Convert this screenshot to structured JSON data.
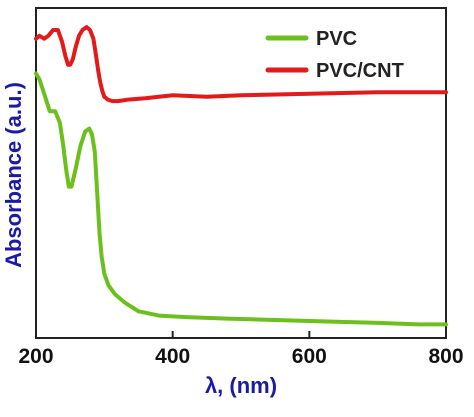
{
  "chart_data": {
    "type": "line",
    "title": "",
    "xlabel": "λ, (nm)",
    "ylabel": "Absorbance (a.u.)",
    "xlim": [
      200,
      800
    ],
    "ylim": [
      0,
      1
    ],
    "xticks": [
      200,
      400,
      600,
      800
    ],
    "grid": false,
    "legend_position": "top-right",
    "label_color": "#1a1aa8",
    "series": [
      {
        "name": "PVC",
        "color": "#6cc01e",
        "x": [
          200,
          205,
          212,
          220,
          228,
          235,
          240,
          244,
          248,
          252,
          258,
          265,
          272,
          278,
          282,
          286,
          290,
          293,
          296,
          300,
          306,
          315,
          330,
          350,
          380,
          420,
          480,
          550,
          620,
          700,
          760,
          800
        ],
        "y": [
          0.85,
          0.83,
          0.78,
          0.72,
          0.72,
          0.68,
          0.6,
          0.52,
          0.46,
          0.46,
          0.52,
          0.6,
          0.65,
          0.66,
          0.64,
          0.58,
          0.42,
          0.3,
          0.22,
          0.16,
          0.12,
          0.09,
          0.06,
          0.03,
          0.015,
          0.01,
          0.005,
          0.0,
          -0.005,
          -0.01,
          -0.015,
          -0.015
        ]
      },
      {
        "name": "PVC/CNT",
        "color": "#e21a1a",
        "x": [
          200,
          205,
          212,
          218,
          225,
          232,
          238,
          243,
          247,
          250,
          254,
          258,
          263,
          268,
          274,
          279,
          284,
          288,
          291,
          294,
          297,
          300,
          305,
          312,
          320,
          335,
          360,
          400,
          450,
          500,
          600,
          700,
          800
        ],
        "y": [
          0.97,
          0.98,
          0.97,
          0.98,
          1.0,
          1.0,
          0.96,
          0.91,
          0.88,
          0.88,
          0.9,
          0.94,
          0.98,
          1.0,
          1.01,
          1.0,
          0.97,
          0.91,
          0.86,
          0.82,
          0.79,
          0.77,
          0.76,
          0.755,
          0.755,
          0.76,
          0.765,
          0.775,
          0.77,
          0.775,
          0.78,
          0.785,
          0.785
        ]
      }
    ]
  }
}
